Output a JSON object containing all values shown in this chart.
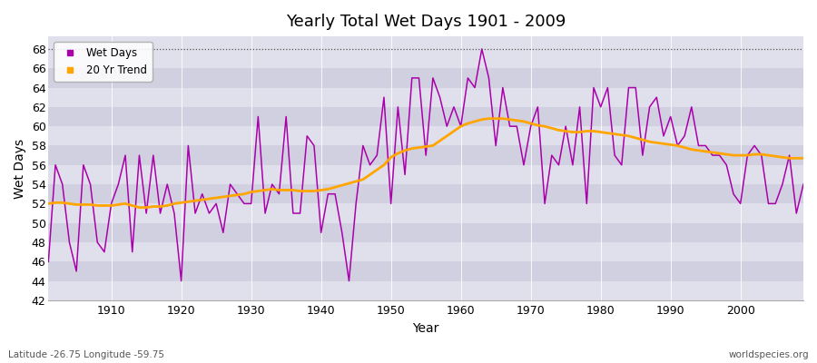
{
  "title": "Yearly Total Wet Days 1901 - 2009",
  "xlabel": "Year",
  "ylabel": "Wet Days",
  "lat_lon_label": "Latitude -26.75 Longitude -59.75",
  "watermark": "worldspecies.org",
  "wet_days_color": "#aa00aa",
  "trend_color": "#ffa500",
  "plot_bg_color": "#d8d8e8",
  "fig_bg_color": "#ffffff",
  "stripe_colors": [
    "#e0e0ec",
    "#d0d0e0"
  ],
  "ylim": [
    42,
    69
  ],
  "yticks": [
    42,
    44,
    46,
    48,
    50,
    52,
    54,
    56,
    58,
    60,
    62,
    64,
    66,
    68
  ],
  "xticks": [
    1910,
    1920,
    1930,
    1940,
    1950,
    1960,
    1970,
    1980,
    1990,
    2000
  ],
  "hline_y": 68,
  "years": [
    1901,
    1902,
    1903,
    1904,
    1905,
    1906,
    1907,
    1908,
    1909,
    1910,
    1911,
    1912,
    1913,
    1914,
    1915,
    1916,
    1917,
    1918,
    1919,
    1920,
    1921,
    1922,
    1923,
    1924,
    1925,
    1926,
    1927,
    1928,
    1929,
    1930,
    1931,
    1932,
    1933,
    1934,
    1935,
    1936,
    1937,
    1938,
    1939,
    1940,
    1941,
    1942,
    1943,
    1944,
    1945,
    1946,
    1947,
    1948,
    1949,
    1950,
    1951,
    1952,
    1953,
    1954,
    1955,
    1956,
    1957,
    1958,
    1959,
    1960,
    1961,
    1962,
    1963,
    1964,
    1965,
    1966,
    1967,
    1968,
    1969,
    1970,
    1971,
    1972,
    1973,
    1974,
    1975,
    1976,
    1977,
    1978,
    1979,
    1980,
    1981,
    1982,
    1983,
    1984,
    1985,
    1986,
    1987,
    1988,
    1989,
    1990,
    1991,
    1992,
    1993,
    1994,
    1995,
    1996,
    1997,
    1998,
    1999,
    2000,
    2001,
    2002,
    2003,
    2004,
    2005,
    2006,
    2007,
    2008,
    2009
  ],
  "wet_days": [
    46,
    56,
    54,
    48,
    45,
    56,
    54,
    48,
    47,
    52,
    54,
    57,
    47,
    57,
    51,
    57,
    51,
    54,
    51,
    44,
    58,
    51,
    53,
    51,
    52,
    49,
    54,
    53,
    52,
    52,
    61,
    51,
    54,
    53,
    61,
    51,
    51,
    59,
    58,
    49,
    53,
    53,
    49,
    44,
    52,
    58,
    56,
    57,
    63,
    52,
    62,
    55,
    65,
    65,
    57,
    65,
    63,
    60,
    62,
    60,
    65,
    64,
    68,
    65,
    58,
    64,
    60,
    60,
    56,
    60,
    62,
    52,
    57,
    56,
    60,
    56,
    62,
    52,
    64,
    62,
    64,
    57,
    56,
    64,
    64,
    57,
    62,
    63,
    59,
    61,
    58,
    59,
    62,
    58,
    58,
    57,
    57,
    56,
    53,
    52,
    57,
    58,
    57,
    52,
    52,
    54,
    57,
    51,
    54
  ],
  "trend_years": [
    1901,
    1902,
    1903,
    1904,
    1905,
    1906,
    1907,
    1908,
    1909,
    1910,
    1911,
    1912,
    1913,
    1914,
    1915,
    1916,
    1917,
    1918,
    1919,
    1920,
    1921,
    1922,
    1923,
    1924,
    1925,
    1926,
    1927,
    1928,
    1929,
    1930,
    1931,
    1932,
    1933,
    1934,
    1935,
    1936,
    1937,
    1938,
    1939,
    1940,
    1941,
    1942,
    1943,
    1944,
    1945,
    1946,
    1947,
    1948,
    1949,
    1950,
    1951,
    1952,
    1953,
    1954,
    1955,
    1956,
    1957,
    1958,
    1959,
    1960,
    1961,
    1962,
    1963,
    1964,
    1965,
    1966,
    1967,
    1968,
    1969,
    1970,
    1971,
    1972,
    1973,
    1974,
    1975,
    1976,
    1977,
    1978,
    1979,
    1980,
    1981,
    1982,
    1983,
    1984,
    1985,
    1986,
    1987,
    1988,
    1989,
    1990,
    1991,
    1992,
    1993,
    1994,
    1995,
    1996,
    1997,
    1998,
    1999,
    2000,
    2001,
    2002,
    2003,
    2004,
    2005,
    2006,
    2007,
    2008,
    2009
  ],
  "trend_values": [
    52.0,
    52.1,
    52.1,
    52.0,
    51.9,
    51.9,
    51.9,
    51.8,
    51.8,
    51.8,
    51.9,
    52.0,
    51.8,
    51.6,
    51.6,
    51.7,
    51.7,
    51.8,
    52.0,
    52.1,
    52.2,
    52.3,
    52.4,
    52.5,
    52.6,
    52.7,
    52.8,
    52.9,
    53.0,
    53.2,
    53.3,
    53.4,
    53.5,
    53.4,
    53.4,
    53.4,
    53.3,
    53.3,
    53.3,
    53.4,
    53.5,
    53.7,
    53.9,
    54.1,
    54.3,
    54.5,
    55.0,
    55.5,
    56.0,
    56.8,
    57.2,
    57.5,
    57.7,
    57.8,
    57.9,
    58.0,
    58.5,
    59.0,
    59.5,
    60.0,
    60.3,
    60.5,
    60.7,
    60.8,
    60.8,
    60.8,
    60.7,
    60.6,
    60.5,
    60.3,
    60.1,
    60.0,
    59.8,
    59.6,
    59.5,
    59.4,
    59.4,
    59.5,
    59.5,
    59.4,
    59.3,
    59.2,
    59.1,
    59.0,
    58.8,
    58.6,
    58.4,
    58.3,
    58.2,
    58.1,
    58.0,
    57.8,
    57.6,
    57.5,
    57.4,
    57.3,
    57.2,
    57.1,
    57.0,
    57.0,
    57.0,
    57.1,
    57.1,
    57.0,
    56.9,
    56.8,
    56.7,
    56.7,
    56.7
  ]
}
